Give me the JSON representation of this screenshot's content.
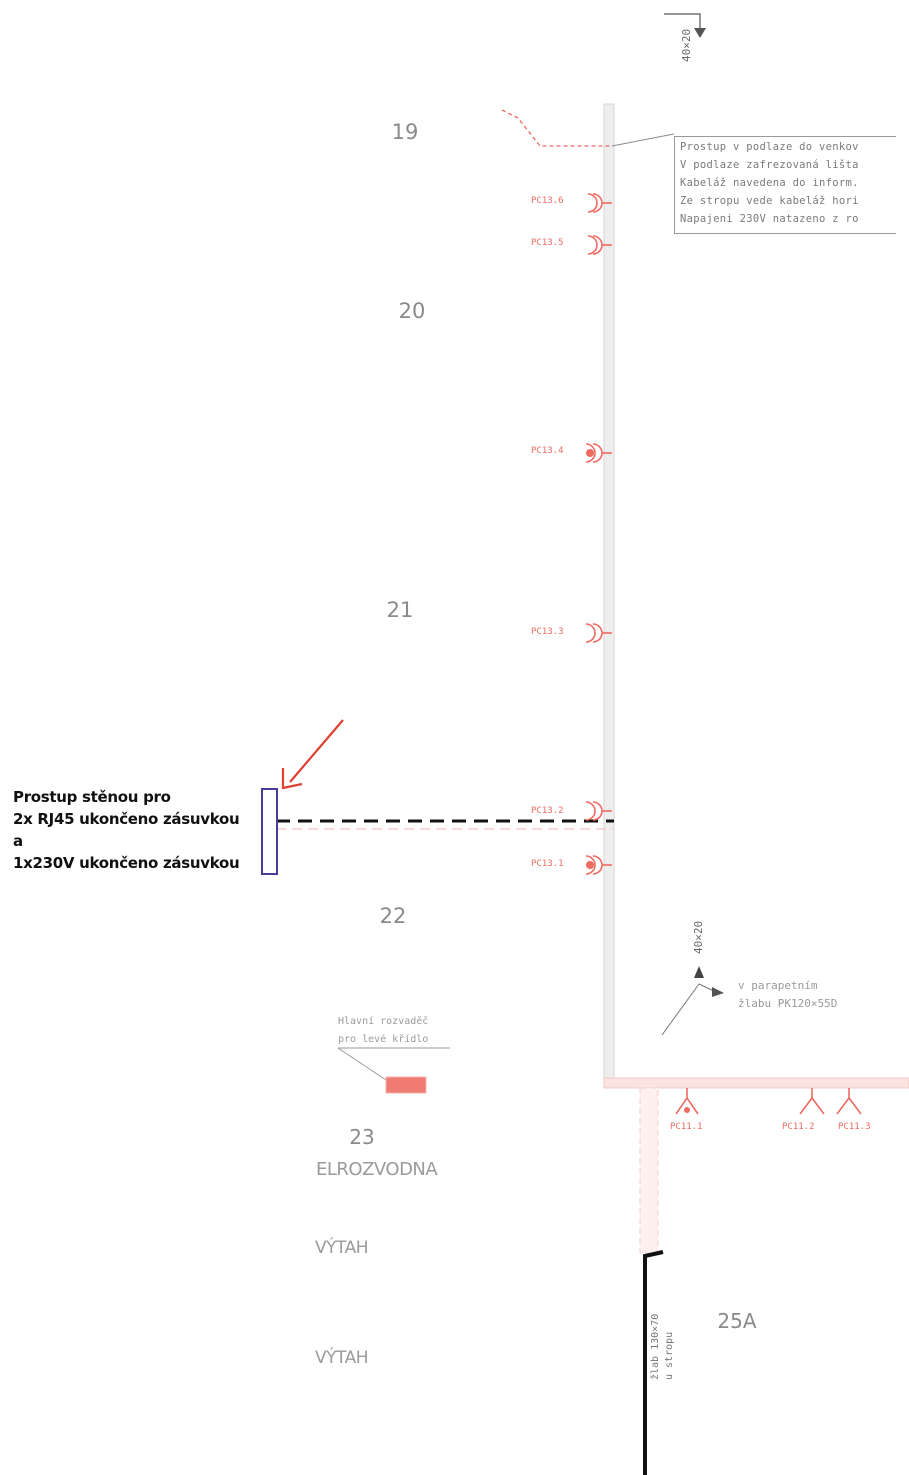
{
  "rooms": {
    "r19": "19",
    "r20": "20",
    "r21": "21",
    "r22": "22",
    "r23": "23",
    "r23_name": "ELROZVODNA",
    "r25a": "25A",
    "lift1": "VÝTAH",
    "lift2": "VÝTAH"
  },
  "callout": {
    "lines": [
      "Prostup v podlaze do venkov",
      "V podlaze zafrezovaná lišta",
      "Kabeláž navedena do inform.",
      "Ze stropu vede kabeláž hori",
      "Napajeni 230V natazeno z ro"
    ]
  },
  "note": {
    "lines": [
      "Prostup stěnou pro",
      "2x RJ45 ukončeno zásuvkou",
      "a",
      "1x230V ukončeno zásuvkou"
    ]
  },
  "duct_labels": {
    "top": "40×20",
    "bottom": "40×20"
  },
  "sockets": {
    "pc136": "PC13.6",
    "pc135": "PC13.5",
    "pc134": "PC13.4",
    "pc133": "PC13.3",
    "pc132": "PC13.2",
    "pc131": "PC13.1",
    "pc111": "PC11.1",
    "pc112": "PC11.2",
    "pc113": "PC11.3"
  },
  "parapet_note": {
    "line1": "v parapetním",
    "line2": "žlabu PK120×55D"
  },
  "switchboard_note": {
    "line1": "Hlavní rozvaděč",
    "line2": "pro levé křídlo"
  },
  "tray_note": {
    "line1": "žlab 130×70",
    "line2": "u stropu"
  },
  "colors": {
    "socket_red": "#ee6b62",
    "arrow_red": "#e0402f",
    "box_blue": "#4a3d9a",
    "wall_gray": "#d9d9d9"
  }
}
